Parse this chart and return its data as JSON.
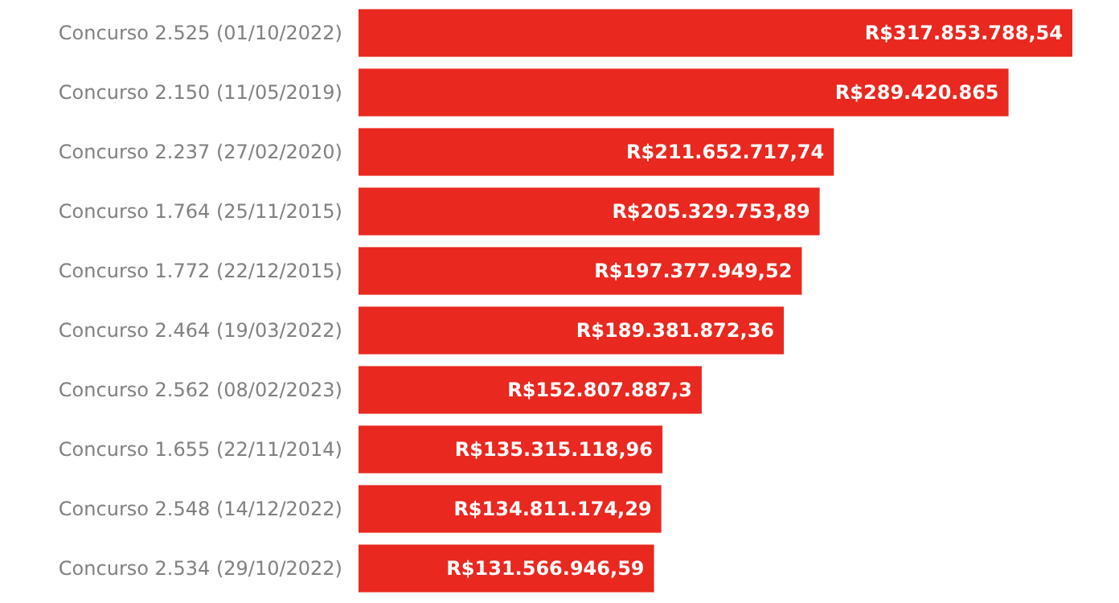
{
  "chart_data": {
    "type": "bar",
    "orientation": "horizontal",
    "color": "#e9281f",
    "categories": [
      "Concurso 2.525 (01/10/2022)",
      "Concurso 2.150 (11/05/2019)",
      "Concurso 2.237 (27/02/2020)",
      "Concurso 1.764 (25/11/2015)",
      "Concurso 1.772 (22/12/2015)",
      "Concurso 2.464 (19/03/2022)",
      "Concurso 2.562 (08/02/2023)",
      "Concurso 1.655 (22/11/2014)",
      "Concurso 2.548 (14/12/2022)",
      "Concurso 2.534 (29/10/2022)"
    ],
    "values": [
      317853788.54,
      289420865,
      211652717.74,
      205329753.89,
      197377949.52,
      189381872.36,
      152807887.3,
      135315118.96,
      134811174.29,
      131566946.59
    ],
    "value_labels": [
      "R$317.853.788,54",
      "R$289.420.865",
      "R$211.652.717,74",
      "R$205.329.753,89",
      "R$197.377.949,52",
      "R$189.381.872,36",
      "R$152.807.887,3",
      "R$135.315.118,96",
      "R$134.811.174,29",
      "R$131.566.946,59"
    ]
  }
}
